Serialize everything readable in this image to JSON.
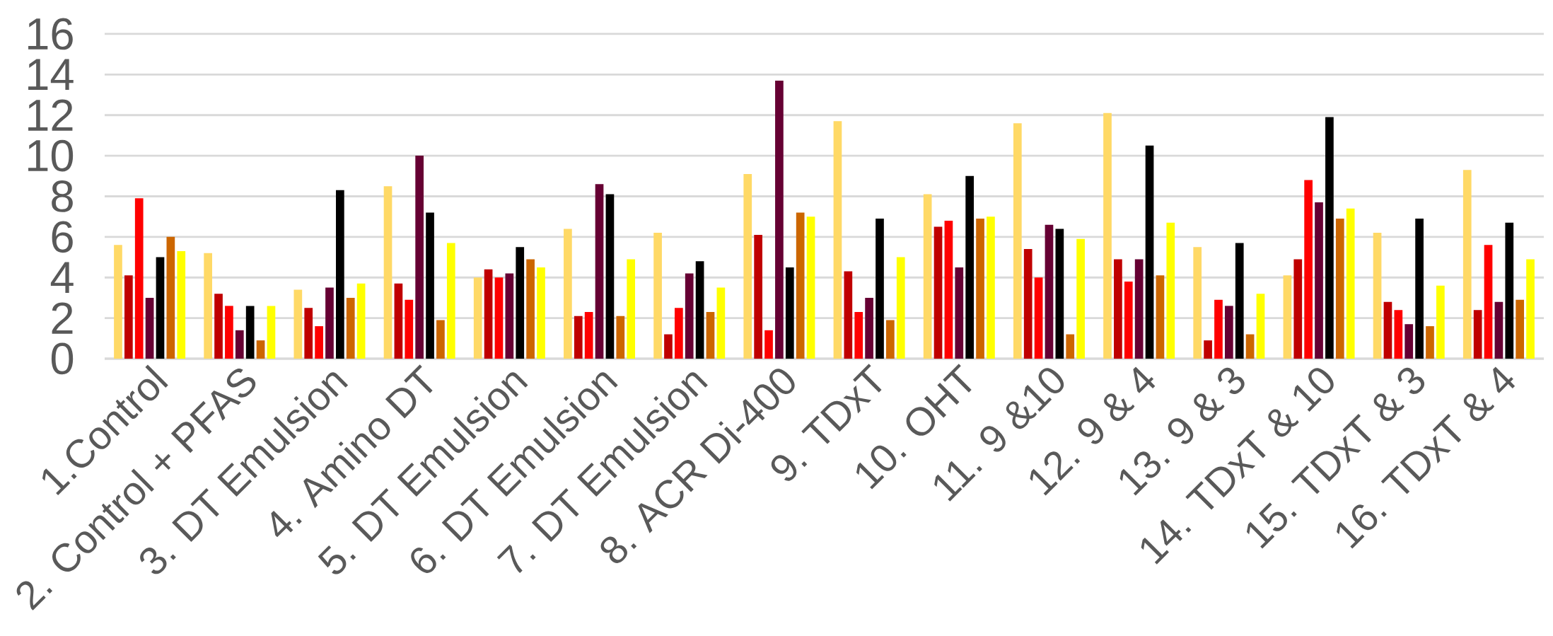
{
  "chart_data": {
    "type": "bar",
    "categories": [
      "1.Control",
      "2. Control + PFAS",
      "3. DT Emulsion",
      "4. Amino DT",
      "5. DT Emulsion",
      "6. DT Emulsion",
      "7. DT Emulsion",
      "8. ACR Di-400",
      "9. TDxT",
      "10. OHT",
      "11. 9 &10",
      "12. 9 & 4",
      "13. 9 & 3",
      "14. TDxT & 10",
      "15. TDxT & 3",
      "16. TDxT & 4"
    ],
    "series": [
      {
        "color": "#ffd966",
        "values": [
          5.6,
          5.2,
          3.4,
          8.5,
          4.0,
          6.4,
          6.2,
          9.1,
          11.7,
          8.1,
          11.6,
          12.1,
          5.5,
          4.1,
          6.2,
          9.3
        ]
      },
      {
        "color": "#c00000",
        "values": [
          4.1,
          3.2,
          2.5,
          3.7,
          4.4,
          2.1,
          1.2,
          6.1,
          4.3,
          6.5,
          5.4,
          4.9,
          0.9,
          4.9,
          2.8,
          2.4
        ]
      },
      {
        "color": "#ff0000",
        "values": [
          7.9,
          2.6,
          1.6,
          2.9,
          4.0,
          2.3,
          2.5,
          1.4,
          2.3,
          6.8,
          4.0,
          3.8,
          2.9,
          8.8,
          2.4,
          5.6
        ]
      },
      {
        "color": "#660033",
        "values": [
          3.0,
          1.4,
          3.5,
          10.0,
          4.2,
          8.6,
          4.2,
          13.7,
          3.0,
          4.5,
          6.6,
          4.9,
          2.6,
          7.7,
          1.7,
          2.8
        ]
      },
      {
        "color": "#000000",
        "values": [
          5.0,
          2.6,
          8.3,
          7.2,
          5.5,
          8.1,
          4.8,
          4.5,
          6.9,
          9.0,
          6.4,
          10.5,
          5.7,
          11.9,
          6.9,
          6.7
        ]
      },
      {
        "color": "#cc6600",
        "values": [
          6.0,
          0.9,
          3.0,
          1.9,
          4.9,
          2.1,
          2.3,
          7.2,
          1.9,
          6.9,
          1.2,
          4.1,
          1.2,
          6.9,
          1.6,
          2.9
        ]
      },
      {
        "color": "#ffff00",
        "values": [
          5.3,
          2.6,
          3.7,
          5.7,
          4.5,
          4.9,
          3.5,
          7.0,
          5.0,
          7.0,
          5.9,
          6.7,
          3.2,
          7.4,
          3.6,
          4.9
        ]
      }
    ],
    "ylim": [
      0,
      16
    ],
    "yticks": [
      0,
      2,
      4,
      6,
      8,
      10,
      12,
      14,
      16
    ],
    "grid": "y"
  }
}
